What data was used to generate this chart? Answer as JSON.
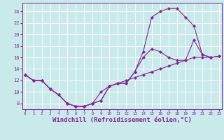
{
  "bg_color": "#c8eaea",
  "grid_color": "#ffffff",
  "line_color": "#882299",
  "xlabel": "Windchill (Refroidissement éolien,°C)",
  "xlabel_fontsize": 6.5,
  "xticks": [
    0,
    1,
    2,
    3,
    4,
    5,
    6,
    7,
    8,
    9,
    10,
    11,
    12,
    13,
    14,
    15,
    16,
    17,
    18,
    19,
    20,
    21,
    22,
    23
  ],
  "yticks": [
    8,
    10,
    12,
    14,
    16,
    18,
    20,
    22,
    24
  ],
  "xlim": [
    -0.3,
    23.3
  ],
  "ylim": [
    7.0,
    25.5
  ],
  "curve1_x": [
    0,
    1,
    2,
    3,
    4,
    5,
    6,
    7,
    8,
    9,
    10,
    11,
    12,
    13,
    14,
    15,
    16,
    17,
    18,
    19,
    20,
    21,
    22,
    23
  ],
  "curve1_y": [
    13,
    12,
    12,
    10.5,
    9.5,
    8.0,
    7.5,
    7.5,
    8.0,
    8.5,
    11.0,
    11.5,
    11.5,
    13.5,
    17.0,
    23.0,
    24.0,
    24.5,
    24.5,
    23.0,
    21.5,
    16.5,
    16.0,
    16.2
  ],
  "curve2_x": [
    0,
    1,
    2,
    3,
    4,
    5,
    6,
    7,
    8,
    9,
    10,
    11,
    12,
    13,
    14,
    15,
    16,
    17,
    18,
    19,
    20,
    21,
    22,
    23
  ],
  "curve2_y": [
    13,
    12,
    12,
    10.5,
    9.5,
    8.0,
    7.5,
    7.5,
    8.0,
    8.5,
    11.0,
    11.5,
    11.5,
    13.5,
    16.0,
    17.5,
    17.0,
    16.0,
    15.5,
    15.5,
    19.0,
    16.5,
    16.0,
    16.2
  ],
  "curve3_x": [
    0,
    1,
    2,
    3,
    4,
    5,
    6,
    7,
    8,
    9,
    10,
    11,
    12,
    13,
    14,
    15,
    16,
    17,
    18,
    19,
    20,
    21,
    22,
    23
  ],
  "curve3_y": [
    13,
    12,
    12,
    10.5,
    9.5,
    8.0,
    7.5,
    7.5,
    8.0,
    10.0,
    11.0,
    11.5,
    12.0,
    12.5,
    13.0,
    13.5,
    14.0,
    14.5,
    15.0,
    15.5,
    16.0,
    16.0,
    16.0,
    16.2
  ]
}
